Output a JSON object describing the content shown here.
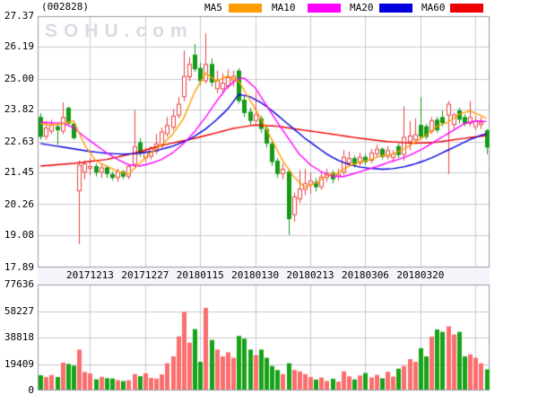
{
  "header": {
    "stock_code": "(002828)",
    "legend": [
      {
        "label": "MA5",
        "color": "#ff9c00"
      },
      {
        "label": "MA10",
        "color": "#ff00ff"
      },
      {
        "label": "MA20",
        "color": "#0000dd"
      },
      {
        "label": "MA60",
        "color": "#ee0000"
      }
    ]
  },
  "watermark": "SOHU.com",
  "chart_data": {
    "type": "candlestick",
    "title": "(002828) daily K-line with volume",
    "y_axis": {
      "min": 17.89,
      "max": 27.37,
      "tick_labels": [
        "27.37",
        "26.19",
        "25.00",
        "23.82",
        "22.63",
        "21.45",
        "20.26",
        "19.08",
        "17.89"
      ],
      "tick_values": [
        27.37,
        26.19,
        25.0,
        23.82,
        22.63,
        21.45,
        20.26,
        19.08,
        17.89
      ]
    },
    "volume_axis": {
      "max": 77636,
      "tick_labels": [
        "77636",
        "58227",
        "38818",
        "19409",
        "0"
      ],
      "tick_values": [
        77636,
        58227,
        38818,
        19409,
        0
      ]
    },
    "x_axis": {
      "ticks": [
        {
          "label": "20171213",
          "index": 9
        },
        {
          "label": "20171227",
          "index": 19
        },
        {
          "label": "20180115",
          "index": 29
        },
        {
          "label": "20180130",
          "index": 39
        },
        {
          "label": "20180213",
          "index": 49
        },
        {
          "label": "20180306",
          "index": 59
        },
        {
          "label": "20180320",
          "index": 69
        },
        {
          "label": "",
          "index": 79
        }
      ]
    },
    "colors": {
      "up": "#e84040",
      "down": "#149a14",
      "vol_up": "#fb6e6e",
      "vol_down": "#17a317",
      "grid": "#c9c9d1",
      "border": "#999aa2",
      "band_bg": "#f4f4fa"
    },
    "candles": [
      [
        23.55,
        23.7,
        22.7,
        22.8,
        11200
      ],
      [
        22.8,
        23.4,
        22.7,
        23.15,
        9900
      ],
      [
        23.0,
        23.45,
        22.9,
        23.25,
        11400
      ],
      [
        23.2,
        23.3,
        22.5,
        23.05,
        9900
      ],
      [
        23.0,
        24.1,
        22.9,
        23.55,
        20400
      ],
      [
        23.9,
        23.95,
        23.25,
        23.3,
        19500
      ],
      [
        23.3,
        23.35,
        22.7,
        22.75,
        18200
      ],
      [
        20.75,
        21.9,
        18.75,
        21.75,
        30000
      ],
      [
        21.45,
        21.9,
        21.2,
        21.8,
        13600
      ],
      [
        21.6,
        22.0,
        21.35,
        21.7,
        12500
      ],
      [
        21.7,
        21.8,
        21.3,
        21.45,
        8200
      ],
      [
        21.45,
        21.8,
        21.25,
        21.65,
        10000
      ],
      [
        21.65,
        21.7,
        21.25,
        21.4,
        9000
      ],
      [
        21.4,
        21.5,
        21.15,
        21.25,
        8800
      ],
      [
        21.25,
        21.6,
        21.1,
        21.5,
        7600
      ],
      [
        21.5,
        21.55,
        21.2,
        21.3,
        6900
      ],
      [
        21.3,
        21.75,
        21.2,
        21.7,
        7500
      ],
      [
        21.75,
        23.8,
        21.6,
        22.45,
        12000
      ],
      [
        22.6,
        22.75,
        22.05,
        22.2,
        10500
      ],
      [
        22.0,
        22.4,
        21.85,
        22.25,
        12600
      ],
      [
        22.05,
        22.45,
        21.95,
        22.4,
        9200
      ],
      [
        22.25,
        22.9,
        22.15,
        22.55,
        8700
      ],
      [
        22.45,
        23.15,
        22.35,
        23.0,
        11800
      ],
      [
        22.9,
        23.55,
        22.8,
        23.25,
        20000
      ],
      [
        23.15,
        23.85,
        23.05,
        23.6,
        25000
      ],
      [
        23.6,
        24.3,
        23.5,
        24.05,
        39700
      ],
      [
        24.3,
        26.05,
        24.15,
        25.1,
        57700
      ],
      [
        25.05,
        25.8,
        24.9,
        25.55,
        35000
      ],
      [
        25.9,
        26.3,
        25.25,
        25.35,
        45000
      ],
      [
        25.4,
        25.6,
        24.75,
        24.9,
        21000
      ],
      [
        24.9,
        26.7,
        24.8,
        25.55,
        60500
      ],
      [
        25.55,
        25.75,
        24.7,
        24.85,
        37000
      ],
      [
        24.6,
        25.3,
        24.45,
        24.95,
        30000
      ],
      [
        24.6,
        25.2,
        24.5,
        24.85,
        25000
      ],
      [
        24.7,
        25.35,
        24.6,
        25.05,
        28000
      ],
      [
        24.9,
        25.3,
        24.7,
        25.1,
        24000
      ],
      [
        25.3,
        25.4,
        24.05,
        24.15,
        40000
      ],
      [
        24.2,
        24.35,
        23.55,
        23.7,
        38000
      ],
      [
        23.75,
        23.9,
        23.25,
        23.4,
        30000
      ],
      [
        23.4,
        24.5,
        23.3,
        23.65,
        26000
      ],
      [
        23.5,
        23.6,
        22.95,
        23.1,
        30000
      ],
      [
        23.1,
        23.2,
        22.4,
        22.55,
        24000
      ],
      [
        22.55,
        22.65,
        21.7,
        21.85,
        18000
      ],
      [
        21.9,
        22.0,
        21.25,
        21.4,
        15000
      ],
      [
        21.4,
        21.8,
        21.2,
        21.6,
        12000
      ],
      [
        21.5,
        21.6,
        19.1,
        19.7,
        20000
      ],
      [
        19.85,
        20.7,
        19.6,
        20.55,
        15000
      ],
      [
        20.45,
        21.55,
        20.3,
        20.85,
        14000
      ],
      [
        20.8,
        21.6,
        20.6,
        21.05,
        12000
      ],
      [
        21.0,
        21.45,
        20.65,
        21.15,
        10000
      ],
      [
        21.1,
        21.25,
        20.75,
        20.9,
        8000
      ],
      [
        20.9,
        21.45,
        20.8,
        21.3,
        9500
      ],
      [
        21.25,
        21.6,
        21.1,
        21.45,
        7000
      ],
      [
        21.45,
        21.55,
        21.05,
        21.2,
        8600
      ],
      [
        21.3,
        21.6,
        21.15,
        21.4,
        6500
      ],
      [
        21.45,
        22.3,
        21.35,
        22.05,
        14000
      ],
      [
        21.8,
        22.25,
        21.7,
        22.0,
        10400
      ],
      [
        22.0,
        22.1,
        21.65,
        21.75,
        8100
      ],
      [
        21.8,
        22.2,
        21.7,
        22.05,
        11000
      ],
      [
        22.05,
        22.15,
        21.75,
        21.85,
        12800
      ],
      [
        21.9,
        22.35,
        21.8,
        22.2,
        9600
      ],
      [
        22.15,
        22.5,
        22.05,
        22.35,
        11400
      ],
      [
        22.35,
        22.4,
        21.95,
        22.05,
        8900
      ],
      [
        22.05,
        22.45,
        21.95,
        22.3,
        13700
      ],
      [
        22.0,
        22.3,
        21.85,
        22.17,
        10200
      ],
      [
        22.45,
        22.55,
        22.0,
        22.12,
        16000
      ],
      [
        22.12,
        23.95,
        21.9,
        22.8,
        18000
      ],
      [
        22.6,
        23.4,
        22.3,
        22.85,
        23000
      ],
      [
        22.67,
        23.5,
        22.55,
        22.9,
        21000
      ],
      [
        23.25,
        24.3,
        22.7,
        22.8,
        31000
      ],
      [
        23.2,
        23.3,
        22.7,
        22.8,
        25000
      ],
      [
        23.0,
        23.55,
        22.9,
        23.42,
        39500
      ],
      [
        23.45,
        23.55,
        22.95,
        23.05,
        44700
      ],
      [
        23.55,
        23.8,
        23.2,
        23.32,
        43000
      ],
      [
        23.6,
        24.15,
        21.4,
        24.05,
        47000
      ],
      [
        23.25,
        23.7,
        23.1,
        23.65,
        41000
      ],
      [
        23.8,
        23.9,
        23.3,
        23.45,
        43000
      ],
      [
        23.55,
        23.65,
        23.2,
        23.3,
        25000
      ],
      [
        23.3,
        24.15,
        23.2,
        23.55,
        26500
      ],
      [
        23.17,
        23.6,
        23.05,
        23.4,
        24000
      ],
      [
        23.25,
        23.55,
        23.1,
        23.35,
        20000
      ],
      [
        23.05,
        23.1,
        22.15,
        22.4,
        15500
      ]
    ],
    "ma_lines": [
      {
        "name": "MA5",
        "color": "#ff9c00",
        "anchors": [
          [
            0,
            23.3
          ],
          [
            2,
            23.25
          ],
          [
            4,
            23.3
          ],
          [
            6,
            23.4
          ],
          [
            8,
            22.5
          ],
          [
            10,
            21.9
          ],
          [
            12,
            21.7
          ],
          [
            14,
            21.5
          ],
          [
            16,
            21.4
          ],
          [
            18,
            21.8
          ],
          [
            20,
            22.2
          ],
          [
            22,
            22.5
          ],
          [
            24,
            22.9
          ],
          [
            26,
            23.5
          ],
          [
            28,
            24.5
          ],
          [
            30,
            25.2
          ],
          [
            32,
            24.9
          ],
          [
            34,
            25.1
          ],
          [
            36,
            24.9
          ],
          [
            38,
            24.2
          ],
          [
            40,
            23.5
          ],
          [
            42,
            22.7
          ],
          [
            44,
            21.9
          ],
          [
            46,
            21.3
          ],
          [
            48,
            20.9
          ],
          [
            50,
            21.05
          ],
          [
            52,
            21.35
          ],
          [
            54,
            21.45
          ],
          [
            56,
            21.7
          ],
          [
            58,
            21.85
          ],
          [
            60,
            21.95
          ],
          [
            62,
            22.1
          ],
          [
            64,
            22.15
          ],
          [
            66,
            22.35
          ],
          [
            68,
            22.6
          ],
          [
            70,
            22.85
          ],
          [
            72,
            23.2
          ],
          [
            74,
            23.35
          ],
          [
            76,
            23.65
          ],
          [
            78,
            23.78
          ],
          [
            80,
            23.6
          ],
          [
            81,
            23.5
          ]
        ]
      },
      {
        "name": "MA10",
        "color": "#ff00ff",
        "anchors": [
          [
            0,
            23.35
          ],
          [
            4,
            23.32
          ],
          [
            6,
            23.15
          ],
          [
            8,
            22.8
          ],
          [
            10,
            22.5
          ],
          [
            12,
            22.2
          ],
          [
            14,
            21.95
          ],
          [
            16,
            21.75
          ],
          [
            18,
            21.7
          ],
          [
            20,
            21.8
          ],
          [
            22,
            21.95
          ],
          [
            24,
            22.2
          ],
          [
            26,
            22.55
          ],
          [
            28,
            23.0
          ],
          [
            30,
            23.55
          ],
          [
            32,
            24.15
          ],
          [
            34,
            24.7
          ],
          [
            36,
            25.0
          ],
          [
            37,
            25.02
          ],
          [
            39,
            24.65
          ],
          [
            41,
            24.0
          ],
          [
            43,
            23.35
          ],
          [
            45,
            22.75
          ],
          [
            47,
            22.15
          ],
          [
            49,
            21.75
          ],
          [
            51,
            21.48
          ],
          [
            53,
            21.32
          ],
          [
            55,
            21.3
          ],
          [
            57,
            21.42
          ],
          [
            59,
            21.55
          ],
          [
            61,
            21.68
          ],
          [
            63,
            21.82
          ],
          [
            65,
            21.95
          ],
          [
            67,
            22.1
          ],
          [
            69,
            22.3
          ],
          [
            71,
            22.55
          ],
          [
            73,
            22.8
          ],
          [
            75,
            23.05
          ],
          [
            77,
            23.3
          ],
          [
            79,
            23.4
          ],
          [
            81,
            23.38
          ]
        ]
      },
      {
        "name": "MA20",
        "color": "#0000dd",
        "anchors": [
          [
            0,
            22.55
          ],
          [
            3,
            22.45
          ],
          [
            6,
            22.35
          ],
          [
            9,
            22.25
          ],
          [
            12,
            22.18
          ],
          [
            15,
            22.15
          ],
          [
            18,
            22.18
          ],
          [
            21,
            22.28
          ],
          [
            24,
            22.45
          ],
          [
            27,
            22.7
          ],
          [
            30,
            23.1
          ],
          [
            32,
            23.45
          ],
          [
            34,
            23.85
          ],
          [
            36,
            24.4
          ],
          [
            38,
            24.32
          ],
          [
            40,
            24.1
          ],
          [
            42,
            23.8
          ],
          [
            44,
            23.45
          ],
          [
            46,
            23.1
          ],
          [
            48,
            22.75
          ],
          [
            50,
            22.45
          ],
          [
            52,
            22.15
          ],
          [
            54,
            21.92
          ],
          [
            56,
            21.76
          ],
          [
            58,
            21.66
          ],
          [
            60,
            21.61
          ],
          [
            62,
            21.58
          ],
          [
            64,
            21.6
          ],
          [
            66,
            21.67
          ],
          [
            68,
            21.78
          ],
          [
            70,
            21.92
          ],
          [
            72,
            22.1
          ],
          [
            74,
            22.3
          ],
          [
            76,
            22.5
          ],
          [
            78,
            22.7
          ],
          [
            80,
            22.86
          ],
          [
            81,
            22.92
          ]
        ]
      },
      {
        "name": "MA60",
        "color": "#ee0000",
        "anchors": [
          [
            0,
            21.7
          ],
          [
            6,
            21.8
          ],
          [
            12,
            21.95
          ],
          [
            17,
            22.18
          ],
          [
            22,
            22.48
          ],
          [
            27,
            22.7
          ],
          [
            31,
            22.9
          ],
          [
            35,
            23.12
          ],
          [
            39,
            23.25
          ],
          [
            43,
            23.2
          ],
          [
            48,
            23.05
          ],
          [
            53,
            22.9
          ],
          [
            58,
            22.75
          ],
          [
            63,
            22.62
          ],
          [
            68,
            22.56
          ],
          [
            72,
            22.6
          ],
          [
            76,
            22.72
          ],
          [
            81,
            22.85
          ]
        ]
      }
    ]
  }
}
